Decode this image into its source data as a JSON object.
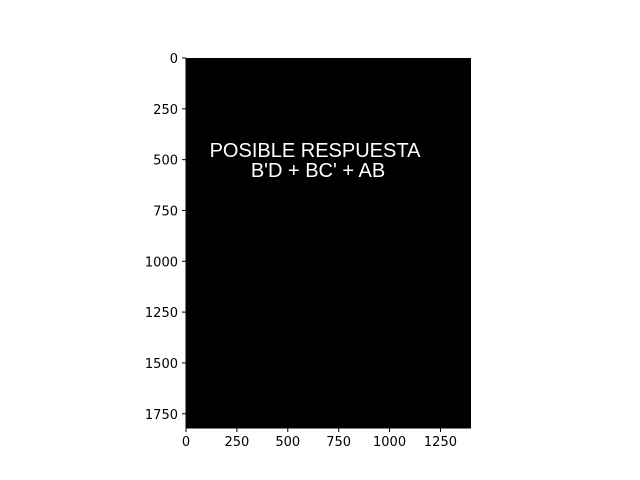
{
  "image_text": {
    "line1": "POSIBLE RESPUESTA",
    "line2": "B'D + BC' + AB"
  },
  "axes": {
    "x_ticks": [
      "0",
      "250",
      "500",
      "750",
      "1000",
      "1250"
    ],
    "y_ticks": [
      "0",
      "250",
      "500",
      "750",
      "1000",
      "1250",
      "1500",
      "1750"
    ]
  },
  "image": {
    "width": 1400,
    "height": 1820,
    "background_color": "#000000"
  },
  "colors": {
    "figure_background": "#ffffff",
    "image_background": "#000000",
    "text": "#ffffff",
    "axis": "#000000"
  }
}
